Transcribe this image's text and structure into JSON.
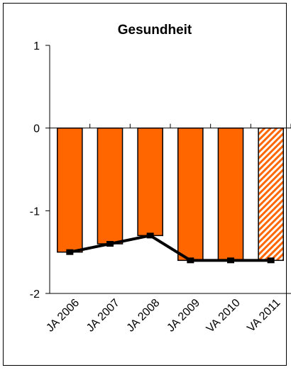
{
  "chart_data": {
    "type": "bar",
    "title": "Gesundheit",
    "xlabel": "",
    "ylabel": "",
    "categories": [
      "JA 2006",
      "JA 2007",
      "JA 2008",
      "JA 2009",
      "VA 2010",
      "VA 2011"
    ],
    "series": [
      {
        "type": "bar",
        "values": [
          -1.5,
          -1.4,
          -1.3,
          -1.6,
          -1.6,
          -1.6
        ]
      },
      {
        "type": "line",
        "values": [
          -1.5,
          -1.4,
          -1.3,
          -1.6,
          -1.6,
          -1.6
        ]
      }
    ],
    "hatched_bars": [
      "VA 2011"
    ],
    "ylim": [
      -2,
      1
    ],
    "yticks": [
      "1",
      "0",
      "-1",
      "-2"
    ],
    "ytick_values": [
      1,
      0,
      -1,
      -2
    ],
    "grid": false,
    "legend": "none",
    "colors": {
      "bar_fill": "#FF6600",
      "bar_stroke": "#000000",
      "line": "#000000",
      "hatch_bg": "#FFFFFF"
    }
  }
}
